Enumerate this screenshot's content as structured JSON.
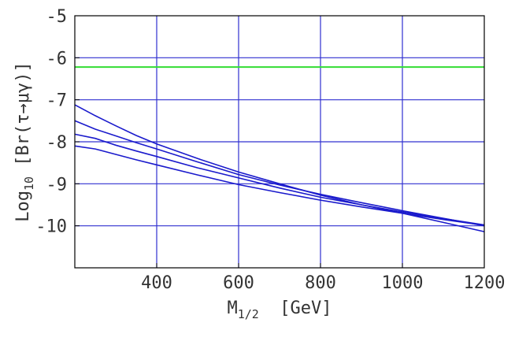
{
  "chart_data": {
    "type": "line",
    "xlabel_main": "M",
    "xlabel_sub": "1/2",
    "xlabel_unit": "[GeV]",
    "ylabel_prefix": "Log",
    "ylabel_sub": "10",
    "ylabel_expr": "[Br(τ→μγ)]",
    "xlim": [
      200,
      1200
    ],
    "ylim": [
      -11,
      -5
    ],
    "x_ticks": [
      400,
      600,
      800,
      1000,
      1200
    ],
    "x_tick_labels": [
      "400",
      "600",
      "800",
      "1000",
      "1200"
    ],
    "y_ticks": [
      -5,
      -6,
      -7,
      -8,
      -9,
      -10
    ],
    "y_tick_labels": [
      "-5",
      "-6",
      "-7",
      "-8",
      "-9",
      "-10"
    ],
    "grid": {
      "vertical": [
        400,
        600,
        800,
        1000
      ],
      "horizontal": [
        -6,
        -7,
        -8,
        -9,
        -10
      ],
      "color": "#3030d0"
    },
    "reference_line": {
      "y": -6.22,
      "color": "#33dd33"
    },
    "series_color": "#1a1acc",
    "series": [
      {
        "x": [
          200,
          250,
          300,
          350,
          400,
          500,
          600,
          700,
          800,
          900,
          1000,
          1100,
          1200
        ],
        "values": [
          -7.12,
          -7.38,
          -7.62,
          -7.85,
          -8.05,
          -8.4,
          -8.72,
          -9.0,
          -9.27,
          -9.5,
          -9.7,
          -9.92,
          -10.14
        ]
      },
      {
        "x": [
          200,
          250,
          300,
          350,
          400,
          500,
          600,
          700,
          800,
          900,
          1000,
          1100,
          1200
        ],
        "values": [
          -7.5,
          -7.7,
          -7.86,
          -8.02,
          -8.17,
          -8.48,
          -8.78,
          -9.03,
          -9.25,
          -9.45,
          -9.64,
          -9.82,
          -10.0
        ]
      },
      {
        "x": [
          200,
          250,
          300,
          350,
          400,
          500,
          600,
          700,
          800,
          900,
          1000,
          1100,
          1200
        ],
        "values": [
          -7.82,
          -7.92,
          -8.08,
          -8.22,
          -8.35,
          -8.62,
          -8.86,
          -9.1,
          -9.32,
          -9.5,
          -9.67,
          -9.83,
          -9.98
        ]
      },
      {
        "x": [
          200,
          250,
          300,
          350,
          400,
          500,
          600,
          700,
          800,
          900,
          1000,
          1100,
          1200
        ],
        "values": [
          -8.1,
          -8.17,
          -8.3,
          -8.43,
          -8.55,
          -8.79,
          -9.02,
          -9.21,
          -9.39,
          -9.55,
          -9.7,
          -9.85,
          -9.99
        ]
      }
    ]
  }
}
